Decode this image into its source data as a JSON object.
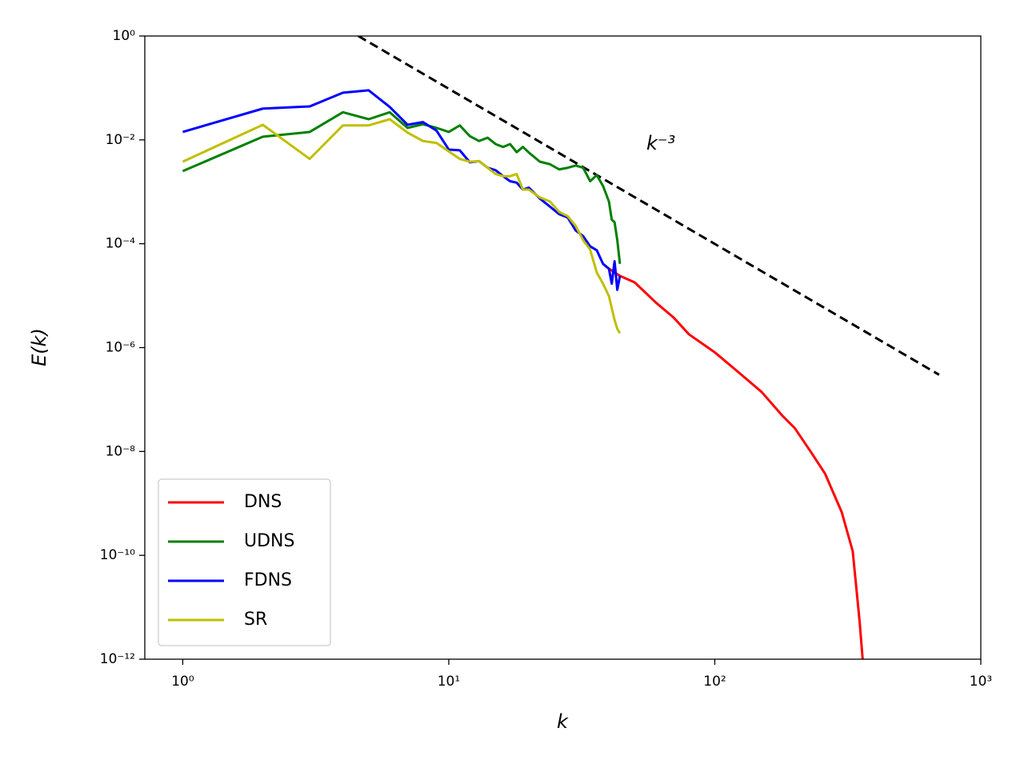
{
  "chart_data": {
    "type": "line",
    "xlabel": "k",
    "ylabel": "E(k)",
    "xscale": "log",
    "yscale": "log",
    "xlim": [
      0.72,
      1000
    ],
    "ylim": [
      1e-12,
      1
    ],
    "xticks": [
      {
        "value": 1,
        "label": "10⁰"
      },
      {
        "value": 10,
        "label": "10¹"
      },
      {
        "value": 100,
        "label": "10²"
      },
      {
        "value": 1000,
        "label": "10³"
      }
    ],
    "yticks": [
      {
        "value": 1e-12,
        "label": "10⁻¹²"
      },
      {
        "value": 1e-10,
        "label": "10⁻¹⁰"
      },
      {
        "value": 1e-08,
        "label": "10⁻⁸"
      },
      {
        "value": 1e-06,
        "label": "10⁻⁶"
      },
      {
        "value": 0.0001,
        "label": "10⁻⁴"
      },
      {
        "value": 0.01,
        "label": "10⁻²"
      },
      {
        "value": 1,
        "label": "10⁰"
      }
    ],
    "legend": "lower left",
    "series": [
      {
        "name": "DNS",
        "color": "#ff0000",
        "x": [
          40,
          44,
          50,
          60,
          70,
          80,
          100,
          120,
          150,
          180,
          200,
          230,
          260,
          300,
          330,
          350,
          365
        ],
        "values": [
          3.3e-05,
          2.4e-05,
          1.8e-05,
          7.4e-06,
          3.8e-06,
          1.8e-06,
          8.1e-07,
          3.7e-07,
          1.4e-07,
          4.8e-08,
          2.8e-08,
          9.7e-09,
          3.7e-09,
          6.8e-10,
          1.2e-10,
          5.6e-12,
          4e-13
        ]
      },
      {
        "name": "UDNS",
        "color": "#008000",
        "x": [
          1,
          2,
          3,
          4,
          5,
          6,
          7,
          8,
          9,
          10,
          11,
          12,
          13,
          14,
          15,
          16,
          17,
          18,
          19,
          20,
          22,
          24,
          26,
          28,
          30,
          32,
          34,
          36,
          38,
          40,
          41,
          42,
          43,
          44
        ],
        "values": [
          0.0025,
          0.0115,
          0.0142,
          0.034,
          0.025,
          0.034,
          0.017,
          0.02,
          0.017,
          0.0142,
          0.019,
          0.0118,
          0.0095,
          0.011,
          0.0083,
          0.0073,
          0.0083,
          0.0058,
          0.0073,
          0.0057,
          0.0038,
          0.0034,
          0.0027,
          0.0029,
          0.0032,
          0.0029,
          0.0016,
          0.0021,
          0.0013,
          0.00065,
          0.00029,
          0.00026,
          0.000117,
          4.1e-05
        ]
      },
      {
        "name": "FDNS",
        "color": "#0000ff",
        "x": [
          1,
          2,
          3,
          4,
          5,
          6,
          7,
          8,
          9,
          10,
          11,
          12,
          13,
          14,
          15,
          16,
          17,
          18,
          19,
          20,
          22,
          24,
          26,
          28,
          30,
          32,
          34,
          36,
          38,
          40,
          41,
          42,
          43,
          44
        ],
        "values": [
          0.0142,
          0.04,
          0.044,
          0.081,
          0.09,
          0.043,
          0.0195,
          0.022,
          0.015,
          0.0065,
          0.0063,
          0.0037,
          0.0039,
          0.0029,
          0.0026,
          0.002,
          0.0016,
          0.0015,
          0.0011,
          0.0012,
          0.00074,
          0.00052,
          0.00037,
          0.00032,
          0.00018,
          0.00014,
          8.9e-05,
          7.5e-05,
          4.1e-05,
          3.3e-05,
          1.7e-05,
          4.6e-05,
          1.3e-05,
          2.4e-05
        ]
      },
      {
        "name": "SR",
        "color": "#bfbf00",
        "x": [
          1,
          2,
          3,
          4,
          5,
          6,
          7,
          8,
          9,
          10,
          11,
          12,
          13,
          14,
          15,
          16,
          17,
          18,
          19,
          20,
          22,
          24,
          26,
          28,
          30,
          32,
          34,
          36,
          38,
          40,
          42,
          43,
          44
        ],
        "values": [
          0.0038,
          0.0195,
          0.0043,
          0.019,
          0.019,
          0.025,
          0.0138,
          0.0095,
          0.0087,
          0.006,
          0.0043,
          0.0038,
          0.0039,
          0.0029,
          0.0022,
          0.002,
          0.002,
          0.0022,
          0.0011,
          0.0011,
          0.00078,
          0.00065,
          0.00041,
          0.00034,
          0.00022,
          0.000117,
          7.7e-05,
          2.8e-05,
          1.7e-05,
          9.8e-06,
          3.4e-06,
          2.3e-06,
          1.9e-06
        ]
      }
    ],
    "reference_line": {
      "x": [
        4.57,
        697
      ],
      "values": [
        1,
        3e-07
      ],
      "color": "#000000",
      "style": "dashed"
    },
    "annotation": "k⁻³"
  }
}
